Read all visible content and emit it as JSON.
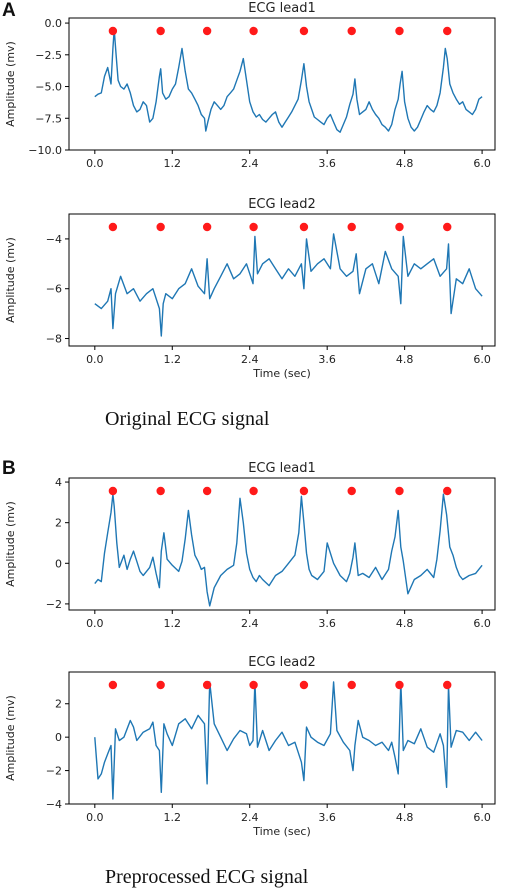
{
  "panels": [
    {
      "label": "A",
      "caption": "Original ECG signal"
    },
    {
      "label": "B",
      "caption": "Preprocessed ECG signal"
    }
  ],
  "chart_data": [
    {
      "type": "line",
      "title": "ECG lead1",
      "xlabel": "",
      "ylabel": "Amplitude (mv)",
      "xlim": [
        -0.4,
        6.2
      ],
      "ylim": [
        -10.0,
        0.4
      ],
      "xticks": [
        0.0,
        1.2,
        2.4,
        3.6,
        4.8,
        6.0
      ],
      "xtick_labels": [
        "0.0",
        "1.2",
        "2.4",
        "3.6",
        "4.8",
        "6.0"
      ],
      "yticks": [
        -10.0,
        -7.5,
        -5.0,
        -2.5,
        0.0
      ],
      "ytick_labels": [
        "−10.0",
        "−7.5",
        "−5.0",
        "−2.5",
        "0.0"
      ],
      "colors": {
        "signal": "#1f77b4",
        "peaks": "#ff1a1a"
      },
      "series": [
        {
          "x": [
            0.0,
            0.05,
            0.1,
            0.15,
            0.2,
            0.25,
            0.28,
            0.3,
            0.33,
            0.36,
            0.4,
            0.45,
            0.5,
            0.55,
            0.6,
            0.65,
            0.7,
            0.75,
            0.8,
            0.85,
            0.9,
            0.95,
            1.0,
            1.02,
            1.05,
            1.1,
            1.15,
            1.2,
            1.25,
            1.3,
            1.35,
            1.4,
            1.45,
            1.5,
            1.55,
            1.6,
            1.65,
            1.7,
            1.72,
            1.75,
            1.8,
            1.85,
            1.9,
            1.95,
            2.0,
            2.05,
            2.1,
            2.15,
            2.2,
            2.25,
            2.3,
            2.35,
            2.4,
            2.45,
            2.5,
            2.55,
            2.6,
            2.65,
            2.7,
            2.75,
            2.8,
            2.85,
            2.9,
            2.95,
            3.0,
            3.05,
            3.1,
            3.15,
            3.2,
            3.24,
            3.28,
            3.32,
            3.36,
            3.4,
            3.45,
            3.5,
            3.55,
            3.6,
            3.65,
            3.7,
            3.75,
            3.8,
            3.85,
            3.9,
            3.95,
            4.0,
            4.03,
            4.06,
            4.1,
            4.15,
            4.2,
            4.25,
            4.3,
            4.35,
            4.4,
            4.45,
            4.5,
            4.55,
            4.6,
            4.65,
            4.7,
            4.73,
            4.76,
            4.8,
            4.85,
            4.9,
            4.95,
            5.0,
            5.05,
            5.1,
            5.15,
            5.2,
            5.25,
            5.3,
            5.35,
            5.4,
            5.43,
            5.46,
            5.5,
            5.55,
            5.6,
            5.65,
            5.7,
            5.75,
            5.8,
            5.85,
            5.9,
            5.95,
            6.0
          ],
          "y": [
            -5.8,
            -5.6,
            -5.5,
            -4.2,
            -3.5,
            -4.8,
            -2.0,
            -0.5,
            -2.5,
            -4.5,
            -5.0,
            -5.2,
            -4.8,
            -5.5,
            -6.5,
            -7.0,
            -6.8,
            -6.2,
            -6.5,
            -7.8,
            -7.5,
            -6.2,
            -4.2,
            -3.6,
            -5.5,
            -6.0,
            -5.8,
            -5.2,
            -4.8,
            -3.5,
            -2.0,
            -3.8,
            -5.2,
            -5.5,
            -6.0,
            -6.5,
            -7.2,
            -7.5,
            -8.5,
            -7.8,
            -6.8,
            -6.2,
            -6.5,
            -6.8,
            -6.5,
            -5.8,
            -5.5,
            -5.2,
            -4.5,
            -3.8,
            -2.8,
            -4.5,
            -6.2,
            -7.0,
            -7.4,
            -7.2,
            -7.6,
            -7.8,
            -7.5,
            -7.2,
            -7.0,
            -7.8,
            -8.2,
            -7.8,
            -7.4,
            -7.0,
            -6.5,
            -6.0,
            -4.5,
            -3.2,
            -5.0,
            -6.2,
            -6.8,
            -7.4,
            -7.6,
            -7.8,
            -8.0,
            -7.5,
            -7.2,
            -7.8,
            -8.4,
            -8.6,
            -8.0,
            -7.4,
            -6.4,
            -5.6,
            -4.4,
            -6.0,
            -7.2,
            -7.0,
            -6.8,
            -6.2,
            -6.8,
            -7.2,
            -7.5,
            -8.0,
            -8.2,
            -8.5,
            -8.0,
            -6.8,
            -6.0,
            -4.8,
            -3.8,
            -6.2,
            -7.5,
            -8.2,
            -8.5,
            -8.2,
            -7.6,
            -7.0,
            -6.5,
            -6.8,
            -7.0,
            -6.5,
            -5.5,
            -3.5,
            -2.0,
            -2.8,
            -4.8,
            -5.5,
            -6.0,
            -6.4,
            -6.2,
            -6.8,
            -7.0,
            -7.2,
            -6.8,
            -6.0,
            -5.8
          ]
        }
      ],
      "peaks_x": [
        0.28,
        1.02,
        1.74,
        2.46,
        3.24,
        3.98,
        4.72,
        5.46
      ]
    },
    {
      "type": "line",
      "title": "ECG lead2",
      "xlabel": "Time (sec)",
      "ylabel": "Amplitude (mv)",
      "xlim": [
        -0.4,
        6.2
      ],
      "ylim": [
        -8.3,
        -3.0
      ],
      "xticks": [
        0.0,
        1.2,
        2.4,
        3.6,
        4.8,
        6.0
      ],
      "xtick_labels": [
        "0.0",
        "1.2",
        "2.4",
        "3.6",
        "4.8",
        "6.0"
      ],
      "yticks": [
        -8,
        -6,
        -4
      ],
      "ytick_labels": [
        "−8",
        "−6",
        "−4"
      ],
      "colors": {
        "signal": "#1f77b4",
        "peaks": "#ff1a1a"
      },
      "series": [
        {
          "x": [
            0.0,
            0.1,
            0.2,
            0.25,
            0.28,
            0.32,
            0.4,
            0.5,
            0.6,
            0.7,
            0.8,
            0.9,
            1.0,
            1.03,
            1.06,
            1.1,
            1.2,
            1.3,
            1.4,
            1.5,
            1.6,
            1.7,
            1.74,
            1.78,
            1.85,
            1.95,
            2.05,
            2.15,
            2.25,
            2.35,
            2.45,
            2.48,
            2.52,
            2.6,
            2.7,
            2.8,
            2.9,
            3.0,
            3.1,
            3.2,
            3.24,
            3.28,
            3.35,
            3.45,
            3.55,
            3.65,
            3.7,
            3.8,
            3.9,
            4.0,
            4.05,
            4.1,
            4.2,
            4.3,
            4.4,
            4.5,
            4.6,
            4.7,
            4.74,
            4.78,
            4.85,
            4.95,
            5.05,
            5.15,
            5.25,
            5.35,
            5.45,
            5.48,
            5.52,
            5.6,
            5.7,
            5.8,
            5.9,
            6.0
          ],
          "y": [
            -6.6,
            -6.8,
            -6.5,
            -6.0,
            -7.6,
            -6.2,
            -5.5,
            -6.2,
            -6.0,
            -6.5,
            -6.2,
            -6.0,
            -6.8,
            -7.9,
            -6.6,
            -6.2,
            -6.4,
            -6.0,
            -5.8,
            -5.2,
            -5.9,
            -6.2,
            -4.8,
            -6.4,
            -6.0,
            -5.5,
            -5.0,
            -5.6,
            -5.4,
            -5.0,
            -5.8,
            -3.9,
            -5.4,
            -5.0,
            -4.8,
            -5.2,
            -5.6,
            -5.2,
            -5.5,
            -5.0,
            -6.0,
            -4.0,
            -5.3,
            -5.0,
            -4.8,
            -5.2,
            -3.8,
            -5.2,
            -5.5,
            -5.3,
            -4.6,
            -6.2,
            -5.2,
            -5.0,
            -5.8,
            -4.5,
            -5.2,
            -5.5,
            -6.6,
            -3.9,
            -5.5,
            -5.0,
            -5.2,
            -5.0,
            -4.8,
            -5.5,
            -5.2,
            -4.2,
            -7.0,
            -5.6,
            -5.8,
            -5.2,
            -6.0,
            -6.3
          ]
        }
      ],
      "peaks_x": [
        0.28,
        1.02,
        1.74,
        2.46,
        3.24,
        3.98,
        4.72,
        5.46
      ]
    },
    {
      "type": "line",
      "title": "ECG lead1",
      "xlabel": "",
      "ylabel": "Amplitude (mv)",
      "xlim": [
        -0.4,
        6.2
      ],
      "ylim": [
        -2.3,
        4.2
      ],
      "xticks": [
        0.0,
        1.2,
        2.4,
        3.6,
        4.8,
        6.0
      ],
      "xtick_labels": [
        "0.0",
        "1.2",
        "2.4",
        "3.6",
        "4.8",
        "6.0"
      ],
      "yticks": [
        -2,
        0,
        2,
        4
      ],
      "ytick_labels": [
        "−2",
        "0",
        "2",
        "4"
      ],
      "colors": {
        "signal": "#1f77b4",
        "peaks": "#ff1a1a"
      },
      "series": [
        {
          "x": [
            0.0,
            0.05,
            0.1,
            0.15,
            0.2,
            0.25,
            0.28,
            0.3,
            0.34,
            0.38,
            0.45,
            0.5,
            0.55,
            0.6,
            0.65,
            0.7,
            0.75,
            0.8,
            0.85,
            0.9,
            0.95,
            1.0,
            1.03,
            1.07,
            1.12,
            1.2,
            1.3,
            1.35,
            1.4,
            1.45,
            1.5,
            1.55,
            1.6,
            1.65,
            1.7,
            1.74,
            1.78,
            1.85,
            1.95,
            2.05,
            2.15,
            2.2,
            2.25,
            2.3,
            2.35,
            2.4,
            2.45,
            2.5,
            2.55,
            2.6,
            2.7,
            2.8,
            2.9,
            3.0,
            3.1,
            3.16,
            3.2,
            3.24,
            3.28,
            3.32,
            3.36,
            3.45,
            3.55,
            3.6,
            3.7,
            3.8,
            3.9,
            3.95,
            4.0,
            4.03,
            4.08,
            4.15,
            4.25,
            4.35,
            4.45,
            4.55,
            4.6,
            4.65,
            4.7,
            4.74,
            4.78,
            4.85,
            4.95,
            5.05,
            5.15,
            5.25,
            5.3,
            5.35,
            5.4,
            5.45,
            5.5,
            5.55,
            5.6,
            5.65,
            5.7,
            5.8,
            5.9,
            6.0
          ],
          "y": [
            -1.0,
            -0.8,
            -0.9,
            0.5,
            1.5,
            2.5,
            3.4,
            2.8,
            1.0,
            -0.2,
            0.4,
            -0.3,
            0.2,
            0.6,
            0.1,
            -0.4,
            -0.6,
            -0.4,
            -0.2,
            0.3,
            -0.5,
            -1.2,
            0.6,
            1.5,
            0.2,
            -0.1,
            -0.4,
            0.1,
            1.2,
            2.6,
            1.4,
            0.4,
            0.1,
            -0.3,
            -0.2,
            -1.4,
            -2.1,
            -1.2,
            -0.6,
            -0.3,
            -0.1,
            1.0,
            3.2,
            2.0,
            0.5,
            -0.3,
            -0.7,
            -0.9,
            -0.6,
            -0.8,
            -1.1,
            -0.6,
            -0.4,
            0.0,
            0.4,
            1.5,
            3.3,
            2.0,
            0.5,
            -0.3,
            -0.6,
            -0.8,
            -0.4,
            1.0,
            0.0,
            -0.6,
            -0.9,
            -0.5,
            0.3,
            1.0,
            -0.6,
            -0.5,
            -0.7,
            -0.2,
            -0.8,
            -0.3,
            0.6,
            1.3,
            2.6,
            0.8,
            0.1,
            -1.5,
            -0.8,
            -0.6,
            -0.3,
            -0.7,
            0.2,
            1.6,
            3.4,
            2.4,
            0.8,
            0.4,
            -0.2,
            -0.6,
            -0.8,
            -0.6,
            -0.5,
            -0.1
          ]
        }
      ],
      "peaks_x": [
        0.28,
        1.02,
        1.74,
        2.46,
        3.24,
        3.98,
        4.72,
        5.46
      ]
    },
    {
      "type": "line",
      "title": "ECG lead2",
      "xlabel": "Time (sec)",
      "ylabel": "Amplitude (mv)",
      "xlim": [
        -0.4,
        6.2
      ],
      "ylim": [
        -4.0,
        3.9
      ],
      "xticks": [
        0.0,
        1.2,
        2.4,
        3.6,
        4.8,
        6.0
      ],
      "xtick_labels": [
        "0.0",
        "1.2",
        "2.4",
        "3.6",
        "4.8",
        "6.0"
      ],
      "yticks": [
        -4,
        -2,
        0,
        2
      ],
      "ytick_labels": [
        "−4",
        "−2",
        "0",
        "2"
      ],
      "colors": {
        "signal": "#1f77b4",
        "peaks": "#ff1a1a"
      },
      "series": [
        {
          "x": [
            0.0,
            0.05,
            0.1,
            0.15,
            0.2,
            0.25,
            0.28,
            0.32,
            0.38,
            0.45,
            0.55,
            0.6,
            0.65,
            0.75,
            0.85,
            0.9,
            0.95,
            1.0,
            1.03,
            1.07,
            1.12,
            1.2,
            1.3,
            1.4,
            1.5,
            1.6,
            1.7,
            1.74,
            1.78,
            1.85,
            1.95,
            2.05,
            2.15,
            2.25,
            2.35,
            2.4,
            2.45,
            2.48,
            2.52,
            2.6,
            2.7,
            2.8,
            2.9,
            3.0,
            3.1,
            3.2,
            3.24,
            3.28,
            3.35,
            3.45,
            3.55,
            3.65,
            3.7,
            3.75,
            3.85,
            3.95,
            4.0,
            4.03,
            4.08,
            4.15,
            4.25,
            4.35,
            4.45,
            4.55,
            4.6,
            4.65,
            4.7,
            4.74,
            4.78,
            4.85,
            4.95,
            5.05,
            5.15,
            5.25,
            5.35,
            5.4,
            5.45,
            5.48,
            5.52,
            5.6,
            5.7,
            5.8,
            5.9,
            6.0
          ],
          "y": [
            0.0,
            -2.5,
            -2.2,
            -1.5,
            -1.0,
            -0.5,
            -3.7,
            0.5,
            -0.2,
            0.0,
            1.0,
            0.6,
            -0.2,
            0.3,
            0.5,
            0.9,
            -0.5,
            -0.8,
            -3.3,
            0.8,
            0.2,
            -0.5,
            0.8,
            1.1,
            0.5,
            1.3,
            0.8,
            -2.8,
            3.3,
            0.8,
            0.0,
            -0.8,
            -0.1,
            0.4,
            0.2,
            -0.5,
            -0.2,
            3.3,
            -0.6,
            0.4,
            -0.8,
            -0.2,
            0.3,
            -0.5,
            -0.3,
            -1.5,
            -2.6,
            0.6,
            0.0,
            -0.3,
            -0.5,
            0.2,
            3.3,
            0.4,
            -0.3,
            -0.8,
            -2.0,
            -0.5,
            1.0,
            0.0,
            -0.2,
            -0.5,
            -0.3,
            -0.8,
            -0.3,
            -1.2,
            -2.2,
            3.3,
            -0.8,
            -0.2,
            -0.4,
            0.5,
            -0.6,
            -0.9,
            0.2,
            -0.5,
            -3.0,
            3.1,
            -0.6,
            0.4,
            0.3,
            -0.2,
            0.3,
            -0.2
          ]
        }
      ],
      "peaks_x": [
        0.28,
        1.02,
        1.74,
        2.46,
        3.24,
        3.98,
        4.72,
        5.46
      ]
    }
  ]
}
